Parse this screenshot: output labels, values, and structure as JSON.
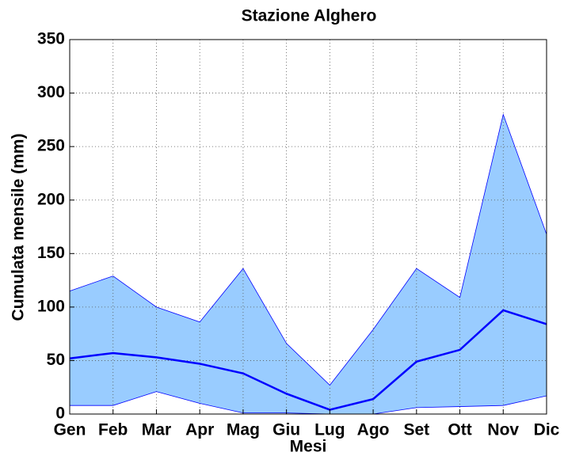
{
  "chart_data": {
    "type": "range-line",
    "title": "Stazione Alghero",
    "x_label": "Mesi",
    "y_label": "Cumulata mensile (mm)",
    "categories": [
      "Gen",
      "Feb",
      "Mar",
      "Apr",
      "Mag",
      "Giu",
      "Lug",
      "Ago",
      "Set",
      "Ott",
      "Nov",
      "Dic"
    ],
    "band": {
      "upper": [
        115,
        129,
        100,
        86,
        136,
        66,
        27,
        79,
        136,
        109,
        280,
        168
      ],
      "lower": [
        8,
        8,
        21,
        10,
        1,
        1,
        0,
        0,
        6,
        7,
        8,
        17
      ],
      "fill": "#99ccff",
      "edge_color": "#0000ff"
    },
    "mean": {
      "values": [
        52,
        57,
        53,
        47,
        38,
        19,
        4,
        14,
        49,
        60,
        97,
        84
      ],
      "color": "#0000ff"
    },
    "ylim": [
      0,
      350
    ],
    "yticks": [
      0,
      50,
      100,
      150,
      200,
      250,
      300,
      350
    ],
    "grid": true
  }
}
